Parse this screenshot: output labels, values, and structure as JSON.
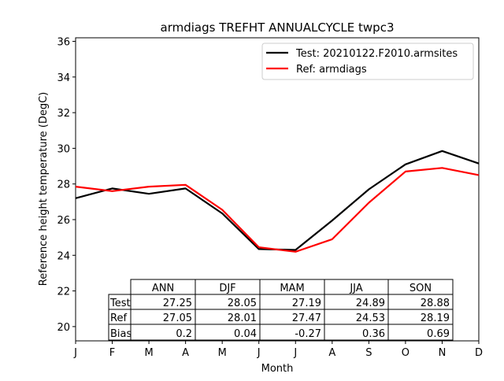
{
  "chart_data": {
    "type": "line",
    "title": "armdiags TREFHT ANNUALCYCLE twpc3",
    "xlabel": "Month",
    "ylabel": "Reference height temperature (DegC)",
    "categories": [
      "J",
      "F",
      "M",
      "A",
      "M",
      "J",
      "J",
      "A",
      "S",
      "O",
      "N",
      "D"
    ],
    "ylim": [
      19.2,
      36.2
    ],
    "yticks": [
      20,
      22,
      24,
      26,
      28,
      30,
      32,
      34,
      36
    ],
    "grid": false,
    "legend_position": "top-right",
    "series": [
      {
        "name": "Test: 20210122.F2010.armsites",
        "color": "#000000",
        "values": [
          27.2,
          27.75,
          27.45,
          27.75,
          26.35,
          24.35,
          24.3,
          25.95,
          27.7,
          29.1,
          29.85,
          29.15
        ]
      },
      {
        "name": "Ref: armdiags",
        "color": "#ff0000",
        "values": [
          27.85,
          27.6,
          27.85,
          27.95,
          26.55,
          24.45,
          24.2,
          24.9,
          26.95,
          28.7,
          28.9,
          28.5
        ]
      }
    ],
    "table": {
      "columns": [
        "ANN",
        "DJF",
        "MAM",
        "JJA",
        "SON"
      ],
      "rows": [
        {
          "label": "Test",
          "values": [
            "27.25",
            "28.05",
            "27.19",
            "24.89",
            "28.88"
          ]
        },
        {
          "label": "Ref",
          "values": [
            "27.05",
            "28.01",
            "27.47",
            "24.53",
            "28.19"
          ]
        },
        {
          "label": "Bias",
          "values": [
            "0.2",
            "0.04",
            "-0.27",
            "0.36",
            "0.69"
          ]
        }
      ]
    }
  }
}
